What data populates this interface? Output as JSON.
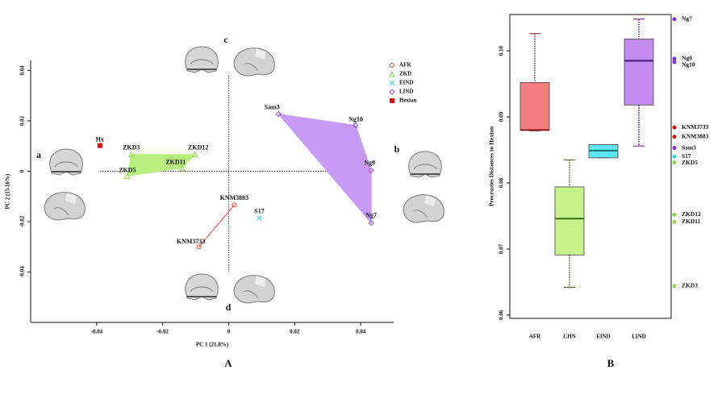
{
  "chart_data": [
    {
      "type": "scatter",
      "x_label": "PC 1 (21.8%)",
      "y_label": "PC 2 (15.16%)",
      "panel_label": "A",
      "annotations": [
        "a",
        "b",
        "c",
        "d"
      ],
      "xlim": [
        -0.06,
        0.05
      ],
      "ylim": [
        -0.06,
        0.044
      ],
      "xticks": [
        -0.04,
        -0.02,
        0,
        0.02,
        0.04
      ],
      "yticks": [
        -0.04,
        -0.02,
        0,
        0.02,
        0.04
      ],
      "series": [
        {
          "name": "AFR",
          "color": "#e8453c",
          "marker": "circle",
          "labels": [
            "KNM3883",
            "KNM3733"
          ],
          "x": [
            0.0017,
            -0.009
          ],
          "values": [
            -0.0134,
            -0.03
          ]
        },
        {
          "name": "ZKD",
          "color": "#8ed84a",
          "marker": "triangle",
          "labels": [
            "ZKD3",
            "ZKD12",
            "ZKD11",
            "ZKD5"
          ],
          "x": [
            -0.0295,
            -0.0102,
            -0.0141,
            -0.0307
          ],
          "values": [
            0.0067,
            0.0067,
            0.0013,
            -0.0019
          ]
        },
        {
          "name": "EIND",
          "color": "#30d0e0",
          "marker": "cross",
          "labels": [
            "S17"
          ],
          "x": [
            0.0093
          ],
          "values": [
            -0.0186
          ]
        },
        {
          "name": "LIND",
          "color": "#9b4fe8",
          "marker": "diamond",
          "labels": [
            "Sam3",
            "Ng10",
            "Ng9",
            "Ng7"
          ],
          "x": [
            0.0151,
            0.0385,
            0.0432,
            0.0432
          ],
          "values": [
            0.0227,
            0.0182,
            0.0003,
            -0.0205
          ]
        },
        {
          "name": "Hexian",
          "color": "#e01010",
          "marker": "square",
          "labels": [
            "Hx"
          ],
          "x": [
            -0.039
          ],
          "values": [
            0.0102
          ]
        }
      ]
    },
    {
      "type": "box",
      "y_label": "Procrustes Distances to Hexian",
      "panel_label": "B",
      "categories": [
        "AFR",
        "CHN",
        "EIND",
        "LIND"
      ],
      "ylim": [
        0.0595,
        0.1055
      ],
      "yticks": [
        0.06,
        0.07,
        0.08,
        0.09,
        {
          "value": 0.1,
          "label": "0.10"
        }
      ],
      "boxes": [
        {
          "min": 0.0879,
          "q1": 0.088,
          "median": 0.088,
          "q3": 0.0952,
          "max": 0.1026,
          "color": "#f27b7b",
          "median_color": "#8b1a1a"
        },
        {
          "min": 0.0642,
          "q1": 0.0691,
          "median": 0.0746,
          "q3": 0.0794,
          "max": 0.0835,
          "color": "#c6f28a",
          "median_color": "#3a6a12"
        },
        {
          "min": 0.0838,
          "q1": 0.0838,
          "median": 0.0849,
          "q3": 0.0858,
          "max": 0.0858,
          "color": "#5ee6ee",
          "median_color": "#1a6f77"
        },
        {
          "min": 0.0856,
          "q1": 0.0918,
          "median": 0.0985,
          "q3": 0.1018,
          "max": 0.1048,
          "color": "#c38cf2",
          "median_color": "#4a1a7a"
        }
      ],
      "points": {
        "labels": [
          "Ng7",
          "Ng9",
          "Ng10",
          "KNM3733",
          "KNM3883",
          "Sam3",
          "S17",
          "ZKD5",
          "ZKD12",
          "ZKD11",
          "ZKD3"
        ],
        "values": [
          0.1048,
          0.0988,
          0.0983,
          0.0884,
          0.087,
          0.0853,
          0.084,
          0.0831,
          0.0752,
          0.0741,
          0.0644
        ],
        "colors": [
          "#8a2be2",
          "#8a2be2",
          "#8a2be2",
          "#e01010",
          "#e01010",
          "#8a2be2",
          "#30d0e0",
          "#8ed84a",
          "#8ed84a",
          "#8ed84a",
          "#8ed84a"
        ]
      }
    }
  ]
}
